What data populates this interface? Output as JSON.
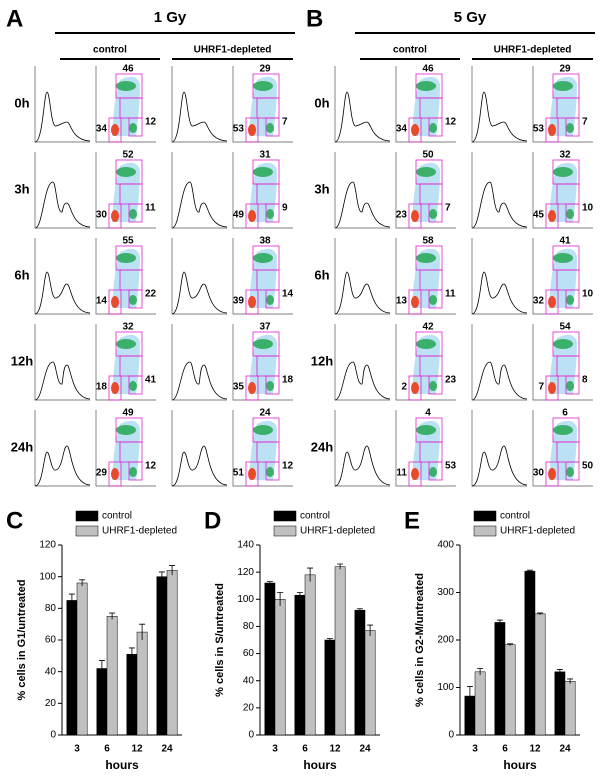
{
  "flow": {
    "panels": [
      {
        "letter": "A",
        "title": "1 Gy",
        "conditions": [
          "control",
          "UHRF1-depleted"
        ],
        "times": [
          "0h",
          "3h",
          "6h",
          "12h",
          "24h"
        ],
        "gates": [
          [
            {
              "top": 46,
              "left": 34,
              "right": 12
            },
            {
              "top": 29,
              "left": 53,
              "right": 7
            }
          ],
          [
            {
              "top": 52,
              "left": 30,
              "right": 11
            },
            {
              "top": 31,
              "left": 49,
              "right": 9
            }
          ],
          [
            {
              "top": 55,
              "left": 14,
              "right": 22
            },
            {
              "top": 38,
              "left": 39,
              "right": 14
            }
          ],
          [
            {
              "top": 32,
              "left": 18,
              "right": 41
            },
            {
              "top": 37,
              "left": 35,
              "right": 18
            }
          ],
          [
            {
              "top": 49,
              "left": 29,
              "right": 12
            },
            {
              "top": 24,
              "left": 51,
              "right": 12
            }
          ]
        ]
      },
      {
        "letter": "B",
        "title": "5 Gy",
        "conditions": [
          "control",
          "UHRF1-depleted"
        ],
        "times": [
          "0h",
          "3h",
          "6h",
          "12h",
          "24h"
        ],
        "gates": [
          [
            {
              "top": 46,
              "left": 34,
              "right": 12
            },
            {
              "top": 29,
              "left": 53,
              "right": 7
            }
          ],
          [
            {
              "top": 50,
              "left": 23,
              "right": 7
            },
            {
              "top": 32,
              "left": 45,
              "right": 10
            }
          ],
          [
            {
              "top": 58,
              "left": 13,
              "right": 11
            },
            {
              "top": 41,
              "left": 32,
              "right": 10
            }
          ],
          [
            {
              "top": 42,
              "left": 2,
              "right": 23
            },
            {
              "top": 54,
              "left": 7,
              "right": 8
            }
          ],
          [
            {
              "top": 4,
              "left": 11,
              "right": 53
            },
            {
              "top": 6,
              "left": 30,
              "right": 50
            }
          ]
        ]
      }
    ]
  },
  "chart_data": [
    {
      "type": "bar",
      "label": "C",
      "ylabel": "% cells in G1/untreated",
      "xlabel": "hours",
      "categories": [
        "3",
        "6",
        "12",
        "24"
      ],
      "ylim": [
        0,
        120
      ],
      "yticks": [
        0,
        20,
        40,
        60,
        80,
        100,
        120
      ],
      "series": [
        {
          "name": "control",
          "color": "#000000",
          "values": [
            85,
            42,
            51,
            100
          ],
          "errors": [
            4,
            5,
            4,
            3
          ]
        },
        {
          "name": "UHRF1-depleted",
          "color": "#c0c0c0",
          "values": [
            96,
            75,
            65,
            104
          ],
          "errors": [
            2,
            2,
            5,
            3
          ]
        }
      ]
    },
    {
      "type": "bar",
      "label": "D",
      "ylabel": "% cells in S/untreated",
      "xlabel": "hours",
      "categories": [
        "3",
        "6",
        "12",
        "24"
      ],
      "ylim": [
        0,
        140
      ],
      "yticks": [
        0,
        20,
        40,
        60,
        80,
        100,
        120,
        140
      ],
      "series": [
        {
          "name": "control",
          "color": "#000000",
          "values": [
            112,
            103,
            70,
            92
          ],
          "errors": [
            1,
            2,
            1,
            1
          ]
        },
        {
          "name": "UHRF1-depleted",
          "color": "#c0c0c0",
          "values": [
            100,
            118,
            124,
            77
          ],
          "errors": [
            5,
            5,
            2,
            4
          ]
        }
      ]
    },
    {
      "type": "bar",
      "label": "E",
      "ylabel": "% cells in G2-M/untreated",
      "xlabel": "hours",
      "categories": [
        "3",
        "6",
        "12",
        "24"
      ],
      "ylim": [
        0,
        400
      ],
      "yticks": [
        0,
        100,
        200,
        300,
        400
      ],
      "series": [
        {
          "name": "control",
          "color": "#000000",
          "values": [
            82,
            237,
            345,
            133
          ],
          "errors": [
            20,
            5,
            2,
            5
          ]
        },
        {
          "name": "UHRF1-depleted",
          "color": "#c0c0c0",
          "values": [
            133,
            190,
            255,
            113
          ],
          "errors": [
            7,
            2,
            2,
            5
          ]
        }
      ]
    }
  ]
}
